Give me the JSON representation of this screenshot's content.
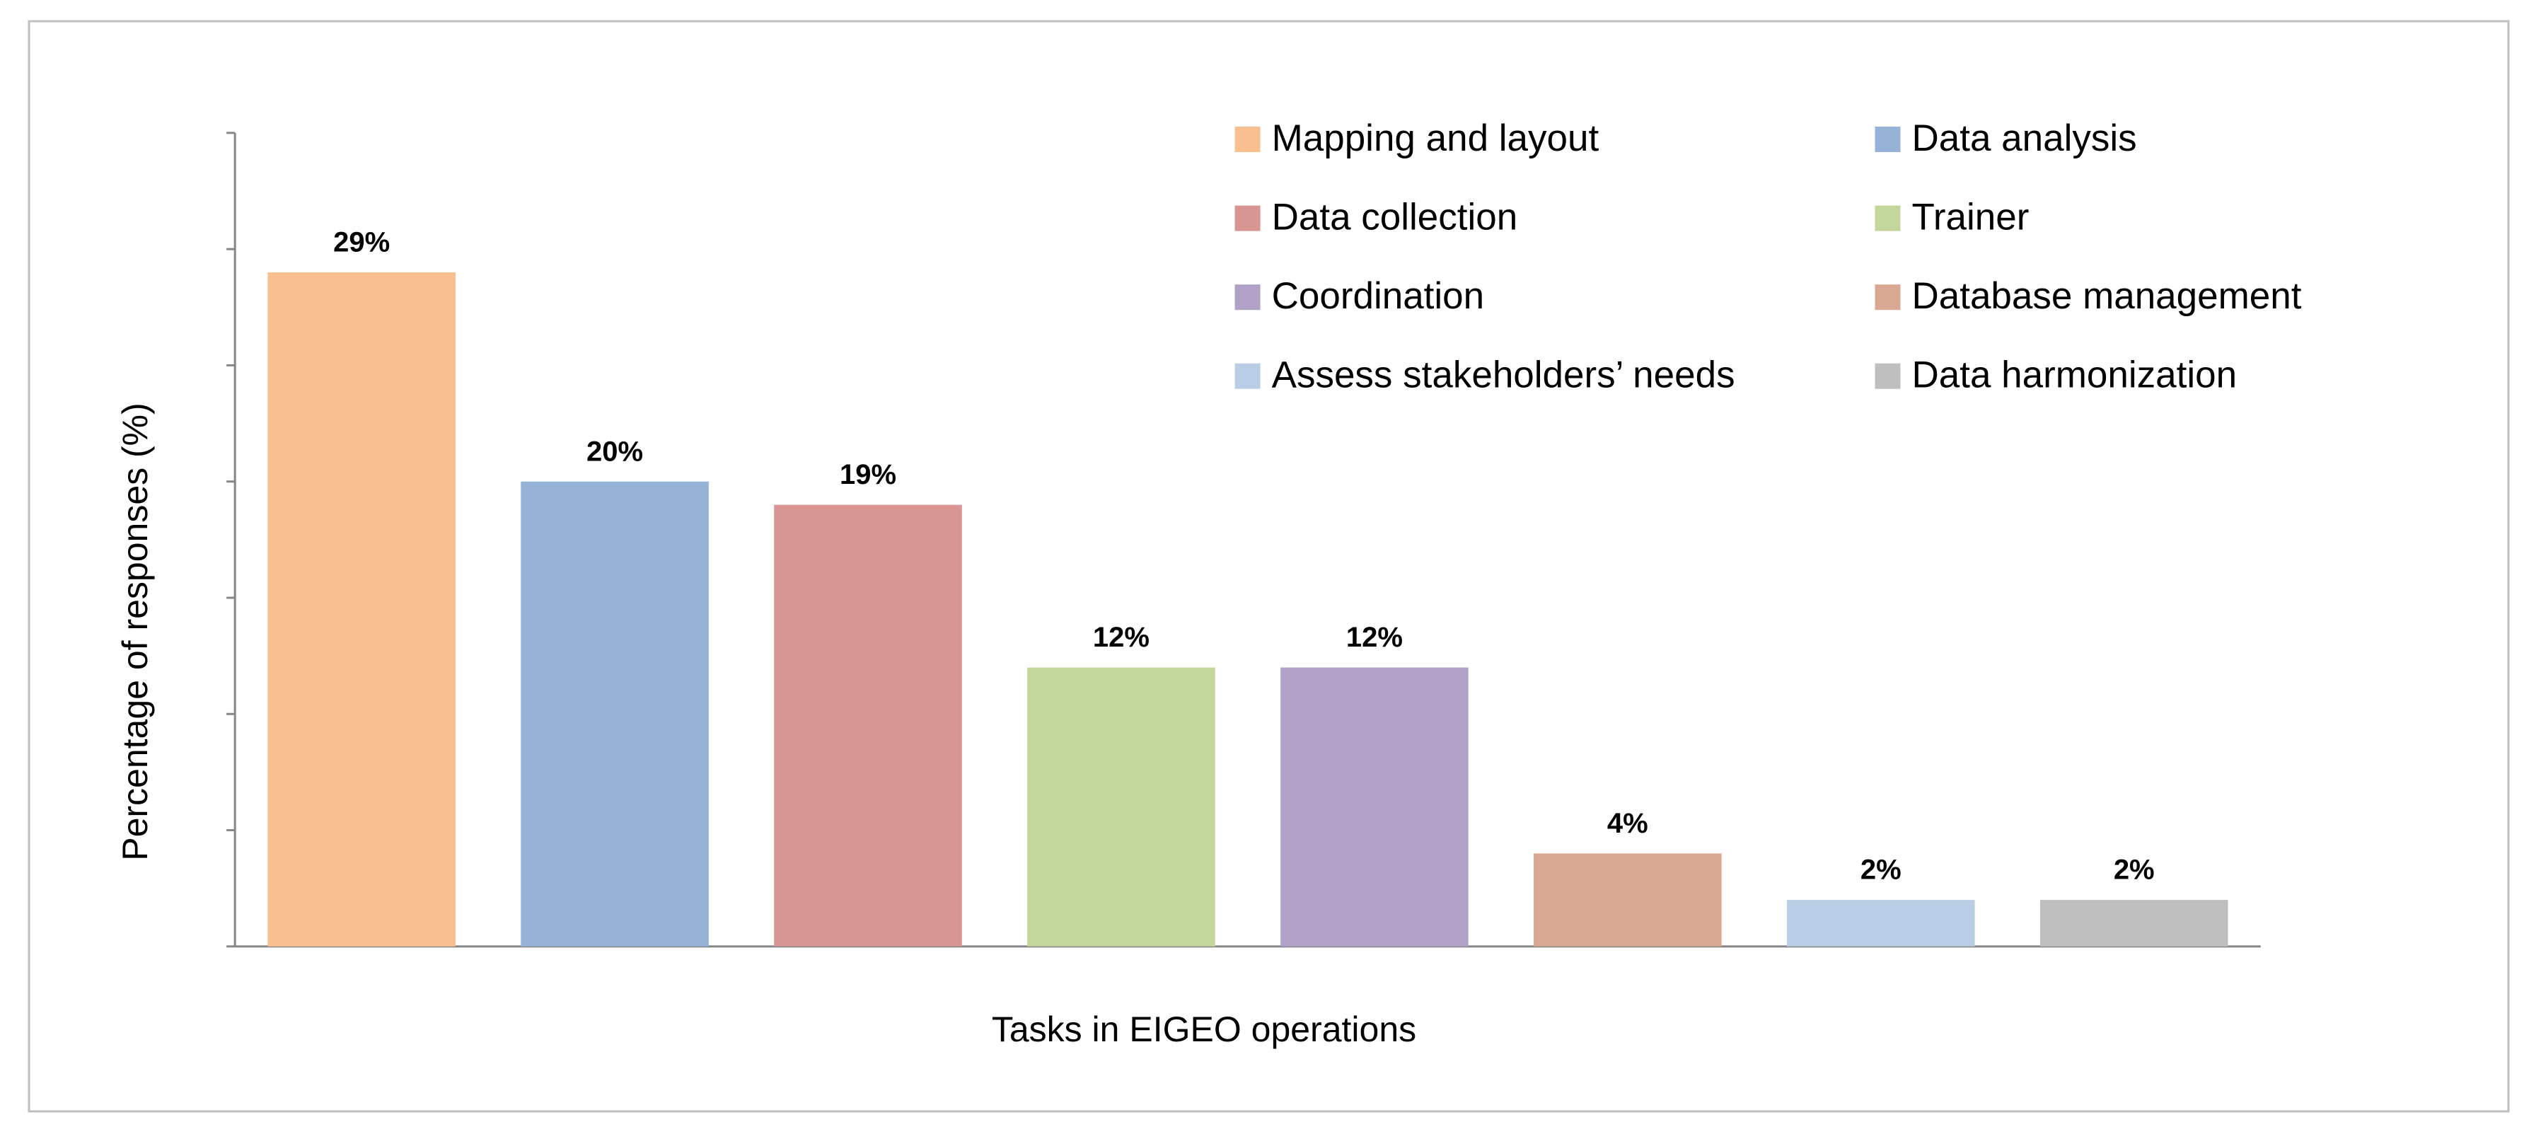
{
  "chart_data": {
    "type": "bar",
    "x_label": "Tasks in EIGEO operations",
    "y_label": "Percentage of responses  (%)",
    "categories": [
      "Mapping and layout",
      "Data analysis",
      "Data collection",
      "Trainer",
      "Coordination",
      "Database management",
      "Assess stakeholders’ needs",
      "Data harmonization"
    ],
    "values": [
      29,
      20,
      19,
      12,
      12,
      4,
      2,
      2
    ],
    "value_labels": [
      "29%",
      "20%",
      "19%",
      "12%",
      "12%",
      "4%",
      "2%",
      "2%"
    ],
    "colors": [
      "#f9bf8f",
      "#95b3d7",
      "#d99594",
      "#c3d69b",
      "#b2a1c7",
      "#d9a893",
      "#b9cde5",
      "#bfbfbf"
    ],
    "ylim": [
      0,
      35
    ],
    "yticks": [
      0,
      5,
      10,
      15,
      20,
      25,
      30,
      35
    ],
    "legend": "top-right"
  }
}
